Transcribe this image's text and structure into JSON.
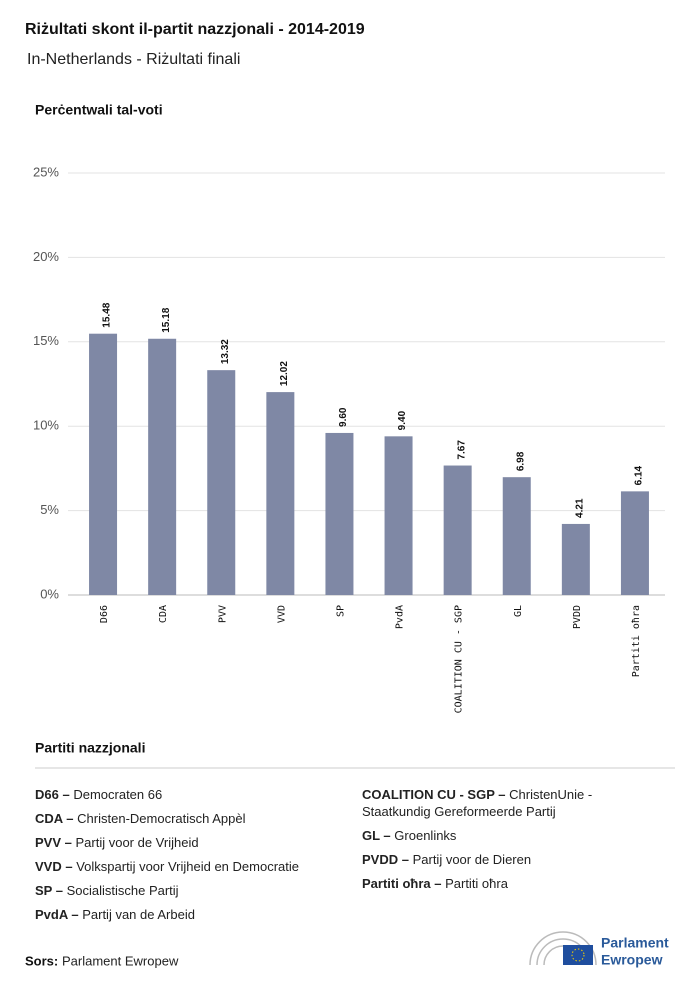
{
  "chart_data": {
    "type": "bar",
    "title": "Riżultati skont il-partit nazzjonali - 2014-2019",
    "subtitle": "In-Netherlands - Riżultati finali",
    "y_label": "Perċentwali tal-voti",
    "categories": [
      "D66",
      "CDA",
      "PVV",
      "VVD",
      "SP",
      "PvdA",
      "COALITION CU - SGP",
      "GL",
      "PVDD",
      "Partiti oħra"
    ],
    "values": [
      15.48,
      15.18,
      13.32,
      12.02,
      9.6,
      9.4,
      7.67,
      6.98,
      4.21,
      6.14
    ],
    "value_labels": [
      "15.48",
      "15.18",
      "13.32",
      "12.02",
      "9.60",
      "9.40",
      "7.67",
      "6.98",
      "4.21",
      "6.14"
    ],
    "color": "#7f88a5",
    "ylim": [
      0,
      25
    ],
    "yticks": [
      {
        "value": 0,
        "label": "0%"
      },
      {
        "value": 5,
        "label": "5%"
      },
      {
        "value": 10,
        "label": "10%"
      },
      {
        "value": 15,
        "label": "15%"
      },
      {
        "value": 20,
        "label": "20%"
      },
      {
        "value": 25,
        "label": "25%"
      }
    ],
    "grid": true
  },
  "party_legend": {
    "title": "Partiti nazzjonali",
    "left": [
      {
        "abbr": "D66 –",
        "name": "Democraten 66"
      },
      {
        "abbr": "CDA –",
        "name": "Christen-Democratisch Appèl"
      },
      {
        "abbr": "PVV –",
        "name": "Partij voor de Vrijheid"
      },
      {
        "abbr": "VVD –",
        "name": "Volkspartij voor Vrijheid en Democratie"
      },
      {
        "abbr": "SP –",
        "name": "Socialistische Partij"
      },
      {
        "abbr": "PvdA –",
        "name": "Partij van de Arbeid"
      }
    ],
    "right": [
      {
        "abbr": "COALITION CU - SGP –",
        "name": "ChristenUnie - Staatkundig Gereformeerde Partij"
      },
      {
        "abbr": "GL –",
        "name": "Groenlinks"
      },
      {
        "abbr": "PVDD –",
        "name": "Partij voor de Dieren"
      },
      {
        "abbr": "Partiti oħra –",
        "name": "Partiti oħra"
      }
    ]
  },
  "source": {
    "label": "Sors:",
    "text": "Parlament Ewropew"
  },
  "logo": {
    "line1": "Parlament",
    "line2": "Ewropew"
  }
}
